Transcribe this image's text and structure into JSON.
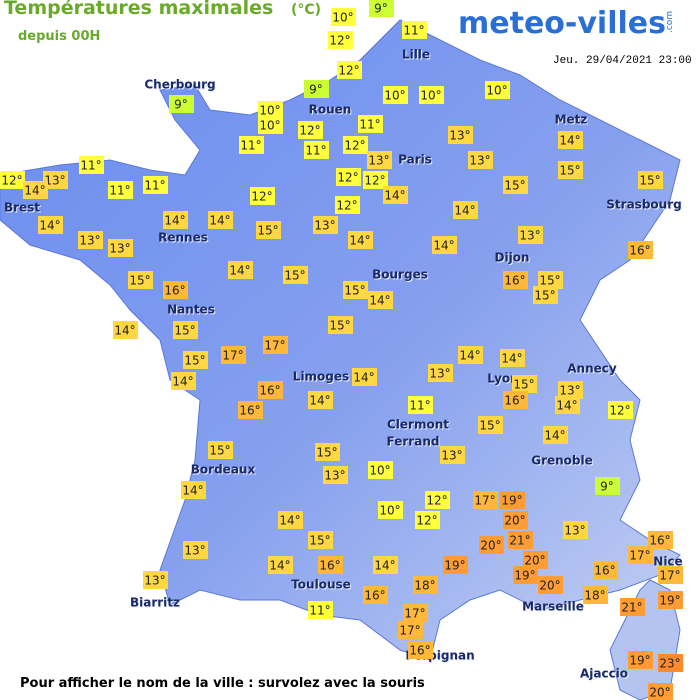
{
  "header": {
    "title": "Températures maximales",
    "unit": "(°C)",
    "subtitle": "depuis 00H",
    "logo": "meteo-villes",
    "logo_suffix": ".com",
    "timestamp": "Jeu. 29/04/2021 23:00"
  },
  "cities": [
    "Cherbourg",
    "Rouen",
    "Lille",
    "Paris",
    "Metz",
    "Strasbourg",
    "Brest",
    "Rennes",
    "Nantes",
    "Bourges",
    "Dijon",
    "Limoges",
    "Lyon",
    "Annecy",
    "Clermont",
    "Ferrand",
    "Grenoble",
    "Bordeaux",
    "Toulouse",
    "Biarritz",
    "Marseille",
    "Nice",
    "Perpignan",
    "Ajaccio"
  ],
  "readings": [
    "10°",
    "9°",
    "11°",
    "12°",
    "12°",
    "9°",
    "10°",
    "10°",
    "10°",
    "9°",
    "10°",
    "10°",
    "12°",
    "11°",
    "11°",
    "11°",
    "12°",
    "13°",
    "14°",
    "11°",
    "13°",
    "13°",
    "15°",
    "12°",
    "13°",
    "14°",
    "11°",
    "11°",
    "12°",
    "12°",
    "14°",
    "15°",
    "15°",
    "12°",
    "12°",
    "14°",
    "14°",
    "14°",
    "14°",
    "15°",
    "13°",
    "13°",
    "13°",
    "14°",
    "14°",
    "13°",
    "16°",
    "14°",
    "15°",
    "15°",
    "16°",
    "16°",
    "15°",
    "15°",
    "15°",
    "14°",
    "14°",
    "15°",
    "15°",
    "17°",
    "17°",
    "15°",
    "14°",
    "14°",
    "14°",
    "14°",
    "13°",
    "15°",
    "13°",
    "16°",
    "16°",
    "14°",
    "16°",
    "14°",
    "11°",
    "12°",
    "15°",
    "14°",
    "15°",
    "15°",
    "13°",
    "10°",
    "13°",
    "9°",
    "14°",
    "17°",
    "19°",
    "12°",
    "10°",
    "12°",
    "14°",
    "20°",
    "13°",
    "15°",
    "21°",
    "20°",
    "16°",
    "13°",
    "17°",
    "14°",
    "16°",
    "14°",
    "19°",
    "20°",
    "19°",
    "17°",
    "16°",
    "20°",
    "13°",
    "18°",
    "16°",
    "18°",
    "21°",
    "19°",
    "11°",
    "17°",
    "17°",
    "16°",
    "19°",
    "23°",
    "20°"
  ],
  "footer": "Pour afficher le nom de la ville : survolez avec la souris"
}
